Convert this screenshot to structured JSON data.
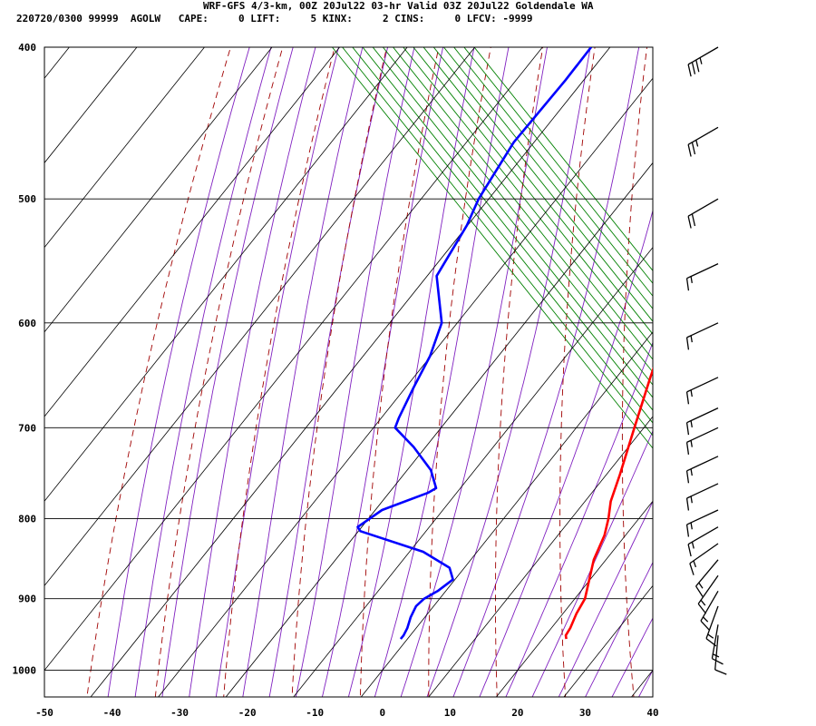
{
  "header": {
    "title": "WRF-GFS 4/3-km, 00Z 20Jul22 03-hr Valid 03Z 20Jul22 Goldendale WA",
    "stats": "220720/0300 99999  AGOLW   CAPE:     0 LIFT:     5 KINX:     2 CINS:     0 LFCV: -9999"
  },
  "colors": {
    "temperature": "#ff0000",
    "dewpoint": "#0000ff",
    "dry_adiabat": "#a00000",
    "moist_adiabat": "#8020c0",
    "mixing_ratio": "#008000",
    "grid": "#000000"
  },
  "chart_data": {
    "type": "line",
    "plot": "skew-T log-P",
    "x_ticks": [
      "-50",
      "-40",
      "-30",
      "-20",
      "-10",
      "0",
      "10",
      "20",
      "30",
      "40"
    ],
    "y_ticks": [
      "400",
      "500",
      "600",
      "700",
      "800",
      "900",
      "1000"
    ],
    "xlim": [
      -50,
      40
    ],
    "ylim": [
      1040,
      400
    ],
    "y_scale": "log",
    "grid": true,
    "series": [
      {
        "key": "temperature",
        "pressure": [
          400,
          450,
          500,
          550,
          600,
          650,
          700,
          750,
          780,
          800,
          820,
          850,
          880,
          900,
          920,
          940,
          950,
          955
        ],
        "values": [
          -21.3,
          -15.0,
          -8.7,
          -2.3,
          1.4,
          5.0,
          8.6,
          12.0,
          13.8,
          15.5,
          16.9,
          18.2,
          20.2,
          21.5,
          22.0,
          22.8,
          23.0,
          23.5
        ]
      },
      {
        "key": "dewpoint",
        "pressure": [
          400,
          420,
          460,
          500,
          520,
          560,
          600,
          630,
          660,
          690,
          700,
          720,
          745,
          765,
          770,
          790,
          810,
          815,
          840,
          860,
          875,
          890,
          900,
          910,
          925,
          940,
          950,
          955
        ],
        "values": [
          -42.8,
          -42.7,
          -43.0,
          -41.5,
          -40.1,
          -38.6,
          -32.3,
          -30.1,
          -28.8,
          -27.4,
          -26.8,
          -21.8,
          -16.5,
          -13.6,
          -14.2,
          -19.0,
          -20.6,
          -19.7,
          -8.0,
          -2.2,
          -0.3,
          -1.2,
          -2.3,
          -2.6,
          -2.1,
          -1.3,
          -1.0,
          -1.0
        ]
      }
    ],
    "wind_barbs": [
      {
        "pressure": 400,
        "direction_deg": 240,
        "speed_kt": 35
      },
      {
        "pressure": 450,
        "direction_deg": 240,
        "speed_kt": 25
      },
      {
        "pressure": 500,
        "direction_deg": 240,
        "speed_kt": 20
      },
      {
        "pressure": 550,
        "direction_deg": 245,
        "speed_kt": 15
      },
      {
        "pressure": 600,
        "direction_deg": 245,
        "speed_kt": 15
      },
      {
        "pressure": 650,
        "direction_deg": 245,
        "speed_kt": 15
      },
      {
        "pressure": 680,
        "direction_deg": 245,
        "speed_kt": 15
      },
      {
        "pressure": 700,
        "direction_deg": 245,
        "speed_kt": 15
      },
      {
        "pressure": 730,
        "direction_deg": 245,
        "speed_kt": 15
      },
      {
        "pressure": 760,
        "direction_deg": 245,
        "speed_kt": 15
      },
      {
        "pressure": 790,
        "direction_deg": 245,
        "speed_kt": 15
      },
      {
        "pressure": 810,
        "direction_deg": 240,
        "speed_kt": 15
      },
      {
        "pressure": 830,
        "direction_deg": 235,
        "speed_kt": 15
      },
      {
        "pressure": 850,
        "direction_deg": 220,
        "speed_kt": 15
      },
      {
        "pressure": 870,
        "direction_deg": 215,
        "speed_kt": 15
      },
      {
        "pressure": 890,
        "direction_deg": 210,
        "speed_kt": 15
      },
      {
        "pressure": 910,
        "direction_deg": 200,
        "speed_kt": 15
      },
      {
        "pressure": 935,
        "direction_deg": 190,
        "speed_kt": 15
      },
      {
        "pressure": 950,
        "direction_deg": 185,
        "speed_kt": 10
      }
    ]
  }
}
